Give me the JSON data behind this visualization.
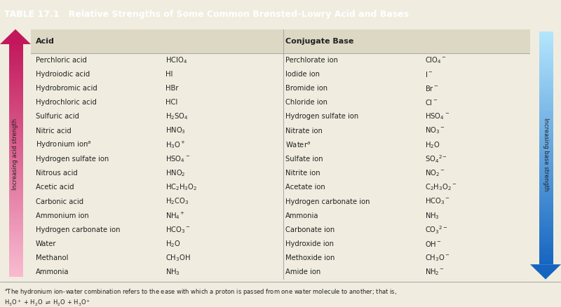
{
  "title": "TABLE 17.1   Relative Strengths of Some Common Brønsted–Lowry Acid and Bases",
  "title_bg": "#4a4480",
  "title_color": "#ffffff",
  "header_acid": "Acid",
  "header_base": "Conjugate Base",
  "bg_color": "#f0ede0",
  "table_bg": "#f5f2e8",
  "header_bg": "#ddd8c4",
  "acids": [
    "Perchloric acid",
    "Hydroiodic acid",
    "Hydrobromic acid",
    "Hydrochloric acid",
    "Sulfuric acid",
    "Nitric acid",
    "Hydronium ion$^a$",
    "Hydrogen sulfate ion",
    "Nitrous acid",
    "Acetic acid",
    "Carbonic acid",
    "Ammonium ion",
    "Hydrogen carbonate ion",
    "Water",
    "Methanol",
    "Ammonia"
  ],
  "acid_formulas": [
    "HClO$_4$",
    "HI",
    "HBr",
    "HCl",
    "H$_2$SO$_4$",
    "HNO$_3$",
    "H$_3$O$^+$",
    "HSO$_4$$^-$",
    "HNO$_2$",
    "HC$_2$H$_3$O$_2$",
    "H$_2$CO$_3$",
    "NH$_4$$^+$",
    "HCO$_3$$^-$",
    "H$_2$O",
    "CH$_3$OH",
    "NH$_3$"
  ],
  "bases": [
    "Perchlorate ion",
    "Iodide ion",
    "Bromide ion",
    "Chloride ion",
    "Hydrogen sulfate ion",
    "Nitrate ion",
    "Water$^a$",
    "Sulfate ion",
    "Nitrite ion",
    "Acetate ion",
    "Hydrogen carbonate ion",
    "Ammonia",
    "Carbonate ion",
    "Hydroxide ion",
    "Methoxide ion",
    "Amide ion"
  ],
  "base_formulas": [
    "ClO$_4$$^-$",
    "I$^-$",
    "Br$^-$",
    "Cl$^-$",
    "HSO$_4$$^-$",
    "NO$_3$$^-$",
    "H$_2$O",
    "SO$_4$$^{2-}$",
    "NO$_2$$^-$",
    "C$_2$H$_3$O$_2$$^-$",
    "HCO$_3$$^-$",
    "NH$_3$",
    "CO$_3$$^{2-}$",
    "OH$^-$",
    "CH$_3$O$^-$",
    "NH$_2$$^-$"
  ],
  "footnote_line1": "$^a$The hydronium ion–water combination refers to the ease with which a proton is passed from one water molecule to another; that is,",
  "footnote_line2": "H$_3$O$^+$ + H$_2$O $\\rightleftharpoons$ H$_2$O + H$_3$O$^+$",
  "acid_color_dark": "#c2185b",
  "acid_color_light": "#f8bbd0",
  "base_color_dark": "#1565c0",
  "base_color_light": "#b3e5fc",
  "acid_strength_label": "Increasing acid strength",
  "base_strength_label": "Increasing base strength",
  "text_color": "#222222",
  "line_color": "#aaaaaa"
}
